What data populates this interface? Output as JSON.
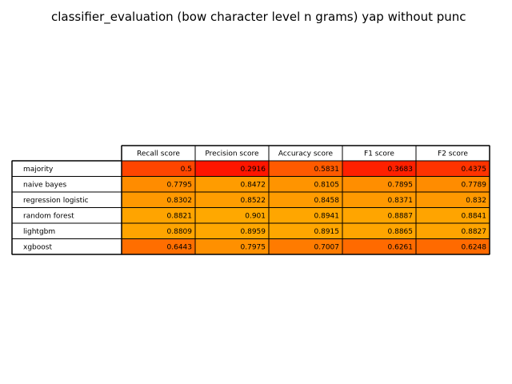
{
  "chart_data": {
    "type": "table",
    "title": "classifier_evaluation (bow character level n grams) yap without punc",
    "columns": [
      "Recall score",
      "Precision score",
      "Accuracy score",
      "F1 score",
      "F2 score"
    ],
    "rows": [
      {
        "label": "majority",
        "values": [
          0.5,
          0.2916,
          0.5831,
          0.3683,
          0.4375
        ],
        "colors": [
          "#ff4500",
          "#ff1500",
          "#ff5a00",
          "#ff2000",
          "#ff3300"
        ]
      },
      {
        "label": "naive bayes",
        "values": [
          0.7795,
          0.8472,
          0.8105,
          0.7895,
          0.7789
        ],
        "colors": [
          "#ff8c00",
          "#ff9c00",
          "#ff9400",
          "#ff8e00",
          "#ff8c00"
        ]
      },
      {
        "label": "regression logistic",
        "values": [
          0.8302,
          0.8522,
          0.8458,
          0.8371,
          0.832
        ],
        "colors": [
          "#ff9800",
          "#ff9d00",
          "#ff9b00",
          "#ff9900",
          "#ff9800"
        ]
      },
      {
        "label": "random forest",
        "values": [
          0.8821,
          0.901,
          0.8941,
          0.8887,
          0.8841
        ],
        "colors": [
          "#ffa400",
          "#ffa800",
          "#ffa600",
          "#ffa500",
          "#ffa400"
        ]
      },
      {
        "label": "lightgbm",
        "values": [
          0.8809,
          0.8959,
          0.8915,
          0.8865,
          0.8827
        ],
        "colors": [
          "#ffa400",
          "#ffa700",
          "#ffa600",
          "#ffa500",
          "#ffa400"
        ]
      },
      {
        "label": "xgboost",
        "values": [
          0.6443,
          0.7975,
          0.7007,
          0.6261,
          0.6248
        ],
        "colors": [
          "#ff6e00",
          "#ff9000",
          "#ff7b00",
          "#ff6a00",
          "#ff6a00"
        ]
      }
    ]
  }
}
